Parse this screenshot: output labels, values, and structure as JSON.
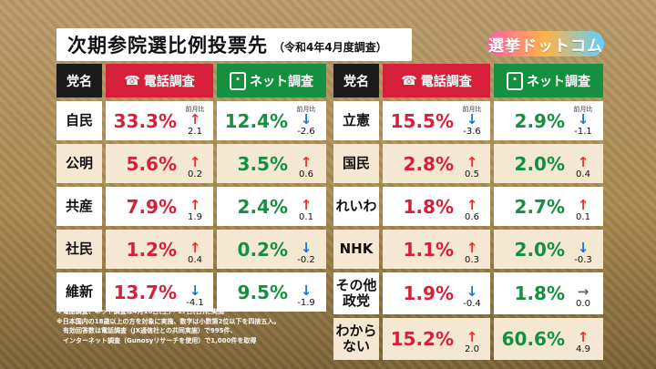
{
  "title": {
    "main": "次期参院選比例投票先",
    "sub": "（令和4年4月度調査）"
  },
  "logo": "選挙ドットコム",
  "headers": {
    "party": "党名",
    "phone": "電話調査",
    "net": "ネット調査",
    "prev_label": "前月比"
  },
  "icons": {
    "phone": "phone-icon",
    "net": "smartphone-icon"
  },
  "colors": {
    "phone": "#d81f3a",
    "net": "#149040",
    "party_header": "#1a1a1a",
    "up": "#e8322e",
    "down": "#1a73d9",
    "flat": "#666666"
  },
  "chart_data": {
    "type": "table",
    "title": "次期参院選比例投票先",
    "columns": [
      "党名",
      "電話調査",
      "前月比",
      "ネット調査",
      "前月比"
    ],
    "rows": [
      {
        "party": "自民",
        "phone": "33.3%",
        "phone_dir": "up",
        "phone_chg": "2.1",
        "net": "12.4%",
        "net_dir": "down",
        "net_chg": "-2.6"
      },
      {
        "party": "公明",
        "phone": "5.6%",
        "phone_dir": "up",
        "phone_chg": "0.2",
        "net": "3.5%",
        "net_dir": "up",
        "net_chg": "0.6"
      },
      {
        "party": "共産",
        "phone": "7.9%",
        "phone_dir": "up",
        "phone_chg": "1.9",
        "net": "2.4%",
        "net_dir": "up",
        "net_chg": "0.1"
      },
      {
        "party": "社民",
        "phone": "1.2%",
        "phone_dir": "up",
        "phone_chg": "0.4",
        "net": "0.2%",
        "net_dir": "down",
        "net_chg": "-0.2"
      },
      {
        "party": "維新",
        "phone": "13.7%",
        "phone_dir": "down",
        "phone_chg": "-4.1",
        "net": "9.5%",
        "net_dir": "down",
        "net_chg": "-1.9"
      },
      {
        "party": "立憲",
        "phone": "15.5%",
        "phone_dir": "down",
        "phone_chg": "-3.6",
        "net": "2.9%",
        "net_dir": "down",
        "net_chg": "-1.1"
      },
      {
        "party": "国民",
        "phone": "2.8%",
        "phone_dir": "up",
        "phone_chg": "0.5",
        "net": "2.0%",
        "net_dir": "up",
        "net_chg": "0.4"
      },
      {
        "party": "れいわ",
        "phone": "1.8%",
        "phone_dir": "up",
        "phone_chg": "0.6",
        "net": "2.7%",
        "net_dir": "up",
        "net_chg": "0.1"
      },
      {
        "party": "NHK",
        "phone": "1.1%",
        "phone_dir": "up",
        "phone_chg": "0.3",
        "net": "2.0%",
        "net_dir": "down",
        "net_chg": "-0.3"
      },
      {
        "party": "その他\n政党",
        "phone": "1.9%",
        "phone_dir": "down",
        "phone_chg": "-0.4",
        "net": "1.8%",
        "net_dir": "flat",
        "net_chg": "0.0"
      },
      {
        "party": "わからない",
        "phone": "15.2%",
        "phone_dir": "up",
        "phone_chg": "2.0",
        "net": "60.6%",
        "net_dir": "up",
        "net_chg": "4.9"
      }
    ]
  },
  "notes": [
    "※電話調査、ネット調査は4月16日(土)・17日(日)に実施",
    "※日本国内の18歳以上の方を対象に実施、数字は小数第2位以下を四捨五入。",
    "　有効回答数は電話調査（JX通信社との共同実施）で995件、",
    "　インターネット調査（Gunosyリサーチを使用）で1,000件を取得"
  ]
}
